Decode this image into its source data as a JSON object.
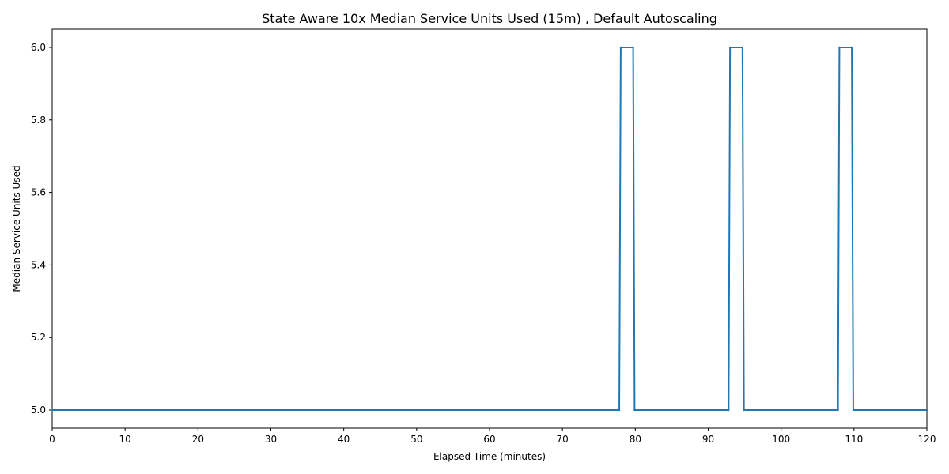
{
  "chart_data": {
    "type": "line",
    "title": "State Aware 10x Median Service Units Used (15m) , Default Autoscaling",
    "xlabel": "Elapsed Time (minutes)",
    "ylabel": "Median Service Units Used",
    "xlim": [
      0,
      120
    ],
    "ylim": [
      4.95,
      6.05
    ],
    "xticks": [
      0,
      10,
      20,
      30,
      40,
      50,
      60,
      70,
      80,
      90,
      100,
      110,
      120
    ],
    "yticks": [
      5.0,
      5.2,
      5.4,
      5.6,
      5.8,
      6.0
    ],
    "ytick_labels": [
      "5.0",
      "5.2",
      "5.4",
      "5.6",
      "5.8",
      "6.0"
    ],
    "grid": false,
    "legend": "none",
    "series": [
      {
        "color": "#1f77b4",
        "points": [
          [
            0,
            5.0
          ],
          [
            77.8,
            5.0
          ],
          [
            78.0,
            6.0
          ],
          [
            79.7,
            6.0
          ],
          [
            79.9,
            5.0
          ],
          [
            92.8,
            5.0
          ],
          [
            93.0,
            6.0
          ],
          [
            94.7,
            6.0
          ],
          [
            94.9,
            5.0
          ],
          [
            107.8,
            5.0
          ],
          [
            108.0,
            6.0
          ],
          [
            109.7,
            6.0
          ],
          [
            109.9,
            5.0
          ],
          [
            120,
            5.0
          ]
        ]
      }
    ]
  }
}
